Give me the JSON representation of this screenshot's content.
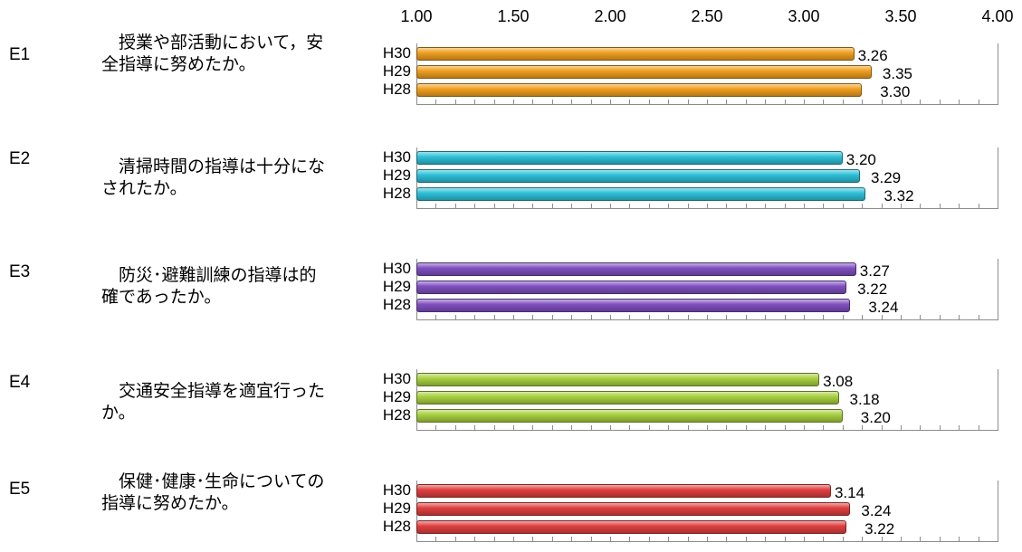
{
  "chart_data": {
    "type": "bar",
    "orientation": "horizontal",
    "xlim": [
      1.0,
      4.0
    ],
    "x_ticks": [
      "1.00",
      "1.50",
      "2.00",
      "2.50",
      "3.00",
      "3.50",
      "4.00"
    ],
    "series_names": [
      "H30",
      "H29",
      "H28"
    ],
    "items": [
      {
        "code": "E1",
        "text": "　授業や部活動において，安全指導に努めたか。",
        "color": "#f0a020",
        "bars": [
          {
            "label": "H30",
            "value": 3.26,
            "value_text": "3.26"
          },
          {
            "label": "H29",
            "value": 3.35,
            "value_text": "3.35"
          },
          {
            "label": "H28",
            "value": 3.3,
            "value_text": "3.30"
          }
        ]
      },
      {
        "code": "E2",
        "text": "　清掃時間の指導は十分になされたか。",
        "color": "#2ec0d8",
        "bars": [
          {
            "label": "H30",
            "value": 3.2,
            "value_text": "3.20"
          },
          {
            "label": "H29",
            "value": 3.29,
            "value_text": "3.29"
          },
          {
            "label": "H28",
            "value": 3.32,
            "value_text": "3.32"
          }
        ]
      },
      {
        "code": "E3",
        "text": "　防災･避難訓練の指導は的確であったか。",
        "color": "#8050c0",
        "bars": [
          {
            "label": "H30",
            "value": 3.27,
            "value_text": "3.27"
          },
          {
            "label": "H29",
            "value": 3.22,
            "value_text": "3.22"
          },
          {
            "label": "H28",
            "value": 3.24,
            "value_text": "3.24"
          }
        ]
      },
      {
        "code": "E4",
        "text": "　交通安全指導を適宜行ったか。",
        "color": "#a8d040",
        "bars": [
          {
            "label": "H30",
            "value": 3.08,
            "value_text": "3.08"
          },
          {
            "label": "H29",
            "value": 3.18,
            "value_text": "3.18"
          },
          {
            "label": "H28",
            "value": 3.2,
            "value_text": "3.20"
          }
        ]
      },
      {
        "code": "E5",
        "text": "　保健･健康･生命についての指導に努めたか。",
        "color": "#e04040",
        "bars": [
          {
            "label": "H30",
            "value": 3.14,
            "value_text": "3.14"
          },
          {
            "label": "H29",
            "value": 3.24,
            "value_text": "3.24"
          },
          {
            "label": "H28",
            "value": 3.22,
            "value_text": "3.22"
          }
        ]
      }
    ]
  }
}
